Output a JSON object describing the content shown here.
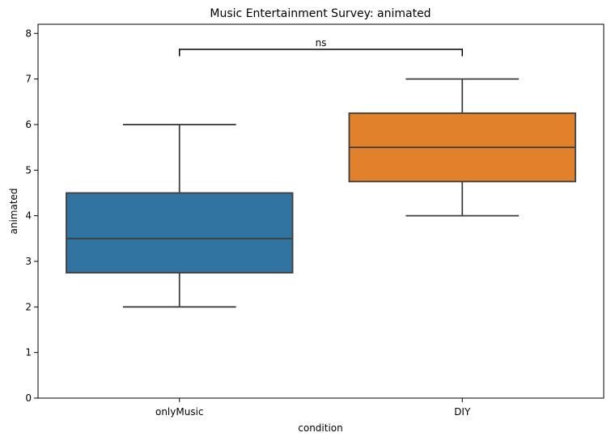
{
  "chart_data": {
    "type": "box",
    "title": "Music Entertainment Survey: animated",
    "xlabel": "condition",
    "ylabel": "animated",
    "ylim": [
      0,
      8.2
    ],
    "yticks": [
      0,
      1,
      2,
      3,
      4,
      5,
      6,
      7,
      8
    ],
    "categories": [
      "onlyMusic",
      "DIY"
    ],
    "boxes": [
      {
        "category": "onlyMusic",
        "whisker_low": 2,
        "q1": 2.75,
        "median": 3.5,
        "q3": 4.5,
        "whisker_high": 6,
        "color": "#3274a1"
      },
      {
        "category": "DIY",
        "whisker_low": 4,
        "q1": 4.75,
        "median": 5.5,
        "q3": 6.25,
        "whisker_high": 7,
        "color": "#e1812c"
      }
    ],
    "annotations": [
      {
        "text": "ns",
        "from": "onlyMusic",
        "to": "DIY",
        "y": 7.65,
        "tick_bottom": 7.5
      }
    ],
    "grid": false,
    "legend": "none"
  }
}
